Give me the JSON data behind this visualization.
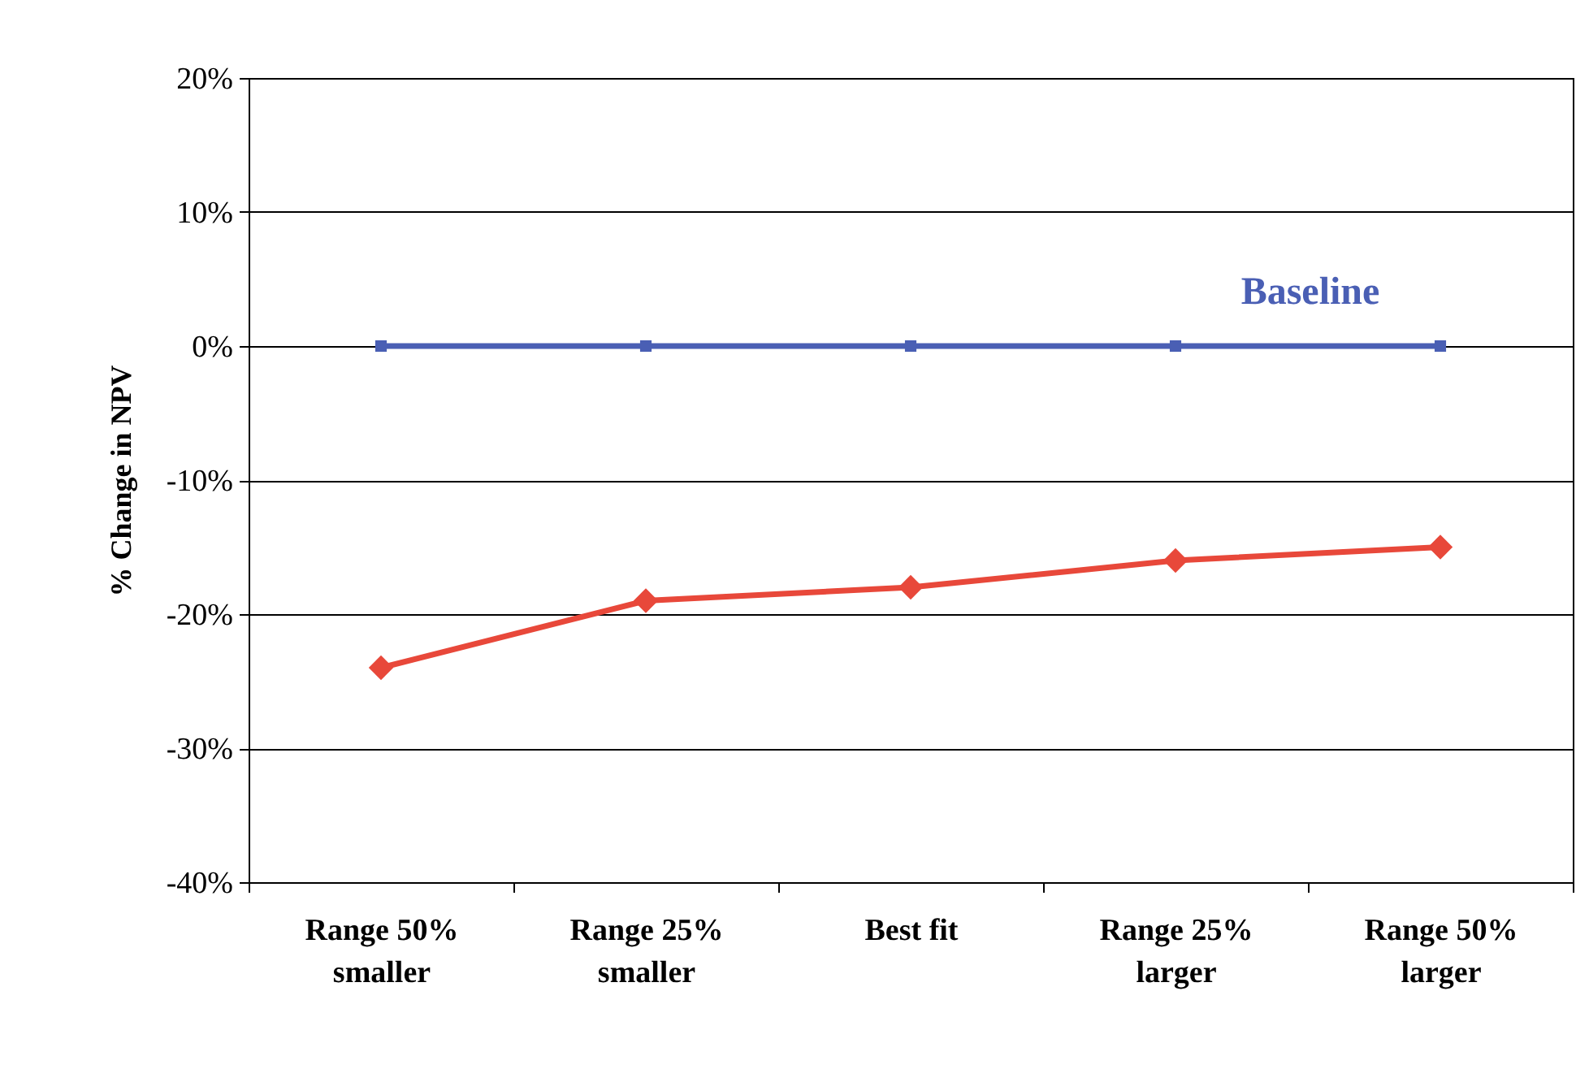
{
  "chart_data": {
    "type": "line",
    "ylabel": "% Change in NPV",
    "categories": [
      "Range 50%\nsmaller",
      "Range 25%\nsmaller",
      "Best fit",
      "Range 25%\nlarger",
      "Range 50%\nlarger"
    ],
    "series": [
      {
        "name": "Baseline",
        "color": "#4a5fb4",
        "marker": "square",
        "values": [
          0,
          0,
          0,
          0,
          0
        ]
      },
      {
        "color": "#e8483a",
        "marker": "diamond",
        "values": [
          -24,
          -19,
          -18,
          -16,
          -15
        ]
      }
    ],
    "ylim": [
      -40,
      20
    ],
    "yticks": [
      {
        "value": -40,
        "label": "-40%"
      },
      {
        "value": -30,
        "label": "-30%"
      },
      {
        "value": -20,
        "label": "-20%"
      },
      {
        "value": -10,
        "label": "-10%"
      },
      {
        "value": 0,
        "label": "0%"
      },
      {
        "value": 10,
        "label": "10%"
      },
      {
        "value": 20,
        "label": "20%"
      }
    ],
    "grid": "y",
    "legend": false,
    "line_style": "solid"
  }
}
